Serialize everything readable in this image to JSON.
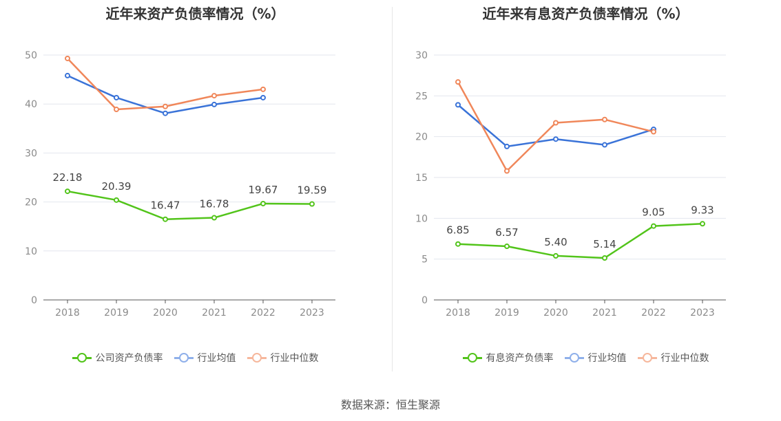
{
  "source": "数据来源：恒生聚源",
  "chart_data": [
    {
      "type": "line",
      "title": "近年来资产负债率情况（%）",
      "categories": [
        "2018",
        "2019",
        "2020",
        "2021",
        "2022",
        "2023"
      ],
      "ylim": [
        0,
        50
      ],
      "yticks": [
        0,
        10,
        20,
        30,
        40,
        50
      ],
      "grid": true,
      "legend_position": "bottom",
      "series": [
        {
          "name": "公司资产负债率",
          "color": "#52c41a",
          "labeled": true,
          "values": [
            22.18,
            20.39,
            16.47,
            16.78,
            19.67,
            19.59
          ],
          "labels": [
            "22.18",
            "20.39",
            "16.47",
            "16.78",
            "19.67",
            "19.59"
          ]
        },
        {
          "name": "行业均值",
          "color": "#3a73d8",
          "legend_color": "#8fb0ea",
          "labeled": false,
          "values": [
            45.8,
            41.3,
            38.1,
            39.9,
            41.3,
            null
          ]
        },
        {
          "name": "行业中位数",
          "color": "#f0875a",
          "legend_color": "#f6b79c",
          "labeled": false,
          "values": [
            49.3,
            38.9,
            39.5,
            41.7,
            43.0,
            null
          ]
        }
      ]
    },
    {
      "type": "line",
      "title": "近年来有息资产负债率情况（%）",
      "categories": [
        "2018",
        "2019",
        "2020",
        "2021",
        "2022",
        "2023"
      ],
      "ylim": [
        0,
        30
      ],
      "yticks": [
        0,
        5,
        10,
        15,
        20,
        25,
        30
      ],
      "grid": true,
      "legend_position": "bottom",
      "series": [
        {
          "name": "有息资产负债率",
          "color": "#52c41a",
          "labeled": true,
          "values": [
            6.85,
            6.57,
            5.4,
            5.14,
            9.05,
            9.33
          ],
          "labels": [
            "6.85",
            "6.57",
            "5.40",
            "5.14",
            "9.05",
            "9.33"
          ]
        },
        {
          "name": "行业均值",
          "color": "#3a73d8",
          "legend_color": "#8fb0ea",
          "labeled": false,
          "values": [
            23.9,
            18.8,
            19.7,
            19.0,
            20.9,
            null
          ]
        },
        {
          "name": "行业中位数",
          "color": "#f0875a",
          "legend_color": "#f6b79c",
          "labeled": false,
          "values": [
            26.7,
            15.8,
            21.7,
            22.1,
            20.6,
            null
          ]
        }
      ]
    }
  ]
}
